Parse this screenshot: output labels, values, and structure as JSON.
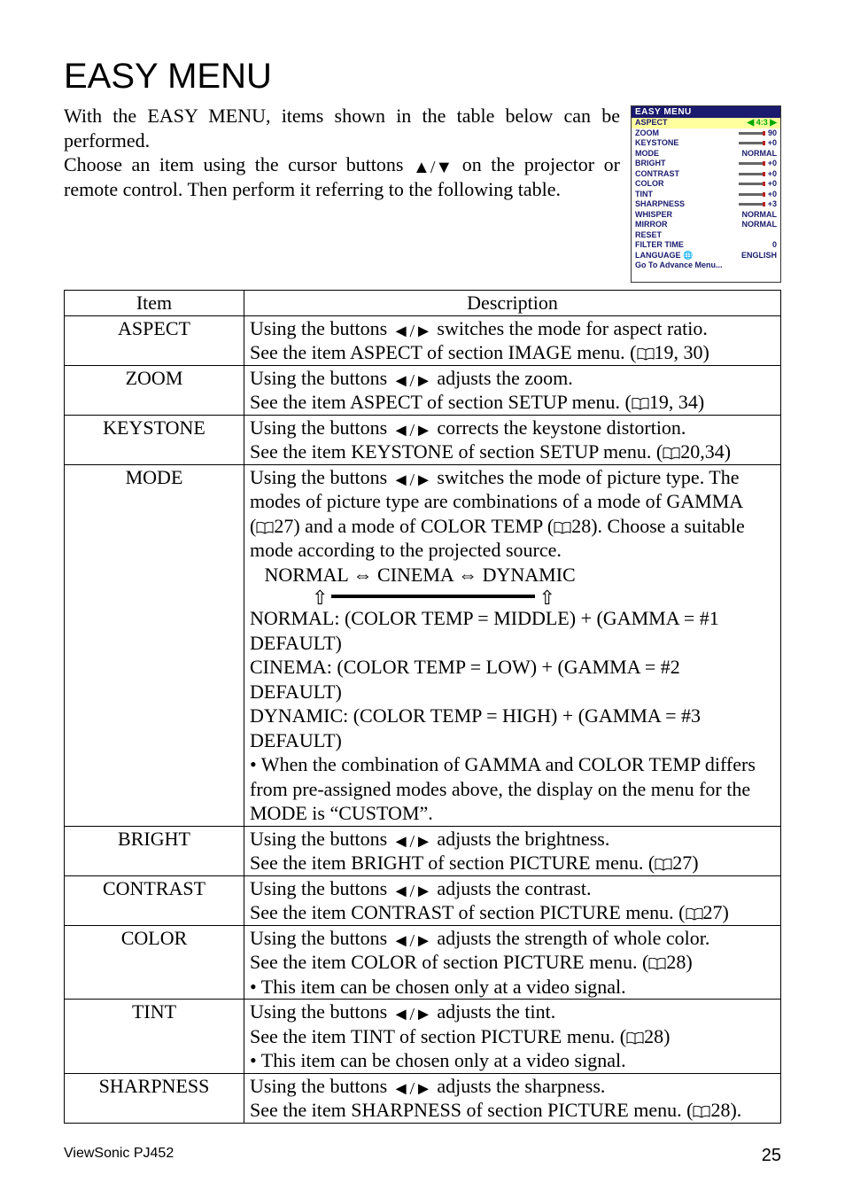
{
  "title": "EASY MENU",
  "intro": {
    "line1": "With the EASY MENU, items shown in the table below can be performed.",
    "line2_a": "Choose an item using the cursor buttons ",
    "line2_b": " on the projector or remote control. Then perform it referring to the following table."
  },
  "osd": {
    "title": "EASY MENU",
    "rows": [
      {
        "label": "ASPECT",
        "value": "4:3",
        "highlight": true,
        "arrows": true
      },
      {
        "label": "ZOOM",
        "value": "90",
        "slider": true
      },
      {
        "label": "KEYSTONE",
        "value": "+0",
        "slider": true
      },
      {
        "label": "MODE",
        "value": "NORMAL"
      },
      {
        "label": "BRIGHT",
        "value": "+0",
        "slider": true
      },
      {
        "label": "CONTRAST",
        "value": "+0",
        "slider": true
      },
      {
        "label": "COLOR",
        "value": "+0",
        "slider": true
      },
      {
        "label": "TINT",
        "value": "+0",
        "slider": true
      },
      {
        "label": "SHARPNESS",
        "value": "+3",
        "slider": true
      },
      {
        "label": "WHISPER",
        "value": "NORMAL"
      },
      {
        "label": "MIRROR",
        "value": "NORMAL"
      },
      {
        "label": "RESET",
        "value": ""
      },
      {
        "label": "FILTER TIME",
        "value": "0"
      },
      {
        "label": "LANGUAGE   🌐",
        "value": "ENGLISH"
      },
      {
        "label": "    Go To Advance Menu...",
        "value": ""
      }
    ]
  },
  "table": {
    "headers": {
      "item": "Item",
      "desc": "Description"
    },
    "rows": [
      {
        "item": "ASPECT",
        "desc_lines": [
          {
            "pre": "Using the buttons ",
            "arrows": true,
            "post": " switches the mode for aspect ratio."
          },
          {
            "pre": "See the item ASPECT of section IMAGE menu. (",
            "manual": true,
            "post": "19, 30)"
          }
        ]
      },
      {
        "item": "ZOOM",
        "desc_lines": [
          {
            "pre": "Using the buttons ",
            "arrows": true,
            "post": " adjusts the zoom."
          },
          {
            "pre": "See the item ASPECT of section SETUP menu. (",
            "manual": true,
            "post": "19, 34)"
          }
        ]
      },
      {
        "item": "KEYSTONE",
        "desc_lines": [
          {
            "pre": "Using the buttons ",
            "arrows": true,
            "post": " corrects the keystone distortion."
          },
          {
            "pre": "See the item KEYSTONE of section SETUP menu. (",
            "manual": true,
            "post": "20,34)"
          }
        ]
      },
      {
        "item": "MODE",
        "desc_lines": [
          {
            "pre": "Using the buttons ",
            "arrows": true,
            "post": " switches the mode of picture type. The"
          },
          {
            "text": "modes of picture type are combinations of a mode of GAMMA"
          },
          {
            "pre": "(",
            "manual": true,
            "post_a": "27) and a mode of COLOR TEMP (",
            "manual2": true,
            "post": "28). Choose a suitable"
          },
          {
            "text": "mode according to the projected source."
          },
          {
            "text": "   NORMAL ⇔ CINEMA ⇔ DYNAMIC"
          },
          {
            "arrow_line": true
          },
          {
            "text": "NORMAL: (COLOR TEMP = MIDDLE) + (GAMMA = #1"
          },
          {
            "text": "DEFAULT)"
          },
          {
            "text": "CINEMA: (COLOR TEMP = LOW) + (GAMMA = #2 DEFAULT)"
          },
          {
            "text": "DYNAMIC: (COLOR TEMP = HIGH) + (GAMMA = #3"
          },
          {
            "text": "DEFAULT)"
          },
          {
            "text": "• When the combination of GAMMA and COLOR TEMP differs"
          },
          {
            "text": "from pre-assigned modes above, the display on the menu for the"
          },
          {
            "text": "MODE is “CUSTOM”."
          }
        ]
      },
      {
        "item": "BRIGHT",
        "desc_lines": [
          {
            "pre": "Using the buttons ",
            "arrows": true,
            "post": " adjusts the brightness."
          },
          {
            "pre": "See the item BRIGHT of section PICTURE menu. (",
            "manual": true,
            "post": "27)"
          }
        ]
      },
      {
        "item": "CONTRAST",
        "desc_lines": [
          {
            "pre": "Using the buttons ",
            "arrows": true,
            "post": " adjusts the contrast."
          },
          {
            "pre": "See the item CONTRAST of section PICTURE menu. (",
            "manual": true,
            "post": "27)"
          }
        ]
      },
      {
        "item": "COLOR",
        "desc_lines": [
          {
            "pre": "Using the buttons ",
            "arrows": true,
            "post": " adjusts the strength of whole color."
          },
          {
            "pre": "See the item COLOR of section PICTURE menu. (",
            "manual": true,
            "post": "28)"
          },
          {
            "text": "• This item can be chosen only at a video signal."
          }
        ]
      },
      {
        "item": "TINT",
        "desc_lines": [
          {
            "pre": "Using the buttons ",
            "arrows": true,
            "post": " adjusts the tint."
          },
          {
            "pre": "See the item TINT of section PICTURE menu. (",
            "manual": true,
            "post": "28)"
          },
          {
            "text": "• This item can be chosen only at a video signal."
          }
        ]
      },
      {
        "item": "SHARPNESS",
        "desc_lines": [
          {
            "pre": "Using the buttons ",
            "arrows": true,
            "post": " adjusts the sharpness."
          },
          {
            "pre": "See the item SHARPNESS of section PICTURE menu. (",
            "manual": true,
            "post": "28)."
          }
        ]
      }
    ]
  },
  "footer": {
    "model": "ViewSonic PJ452",
    "page": "25"
  }
}
